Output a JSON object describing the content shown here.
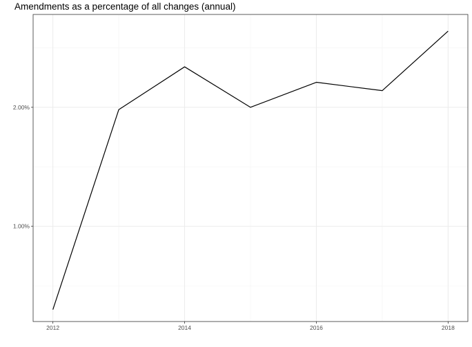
{
  "chart_data": {
    "type": "line",
    "title": "Amendments as a percentage of all changes (annual)",
    "xlabel": "",
    "ylabel": "",
    "x": [
      2012,
      2013,
      2014,
      2015,
      2016,
      2017,
      2018
    ],
    "series": [
      {
        "values": [
          0.003,
          0.0198,
          0.0234,
          0.02,
          0.0221,
          0.0214,
          0.0264
        ]
      }
    ],
    "xlim": [
      2011.7,
      2018.3
    ],
    "ylim": [
      0.002,
      0.0278
    ],
    "x_ticks": [
      2012,
      2014,
      2016,
      2018
    ],
    "x_tick_labels": [
      "2012",
      "2014",
      "2016",
      "2018"
    ],
    "x_minor_ticks": [
      2013,
      2015,
      2017
    ],
    "y_ticks": [
      0.01,
      0.02
    ],
    "y_tick_labels": [
      "1.00%",
      "2.00%"
    ],
    "y_minor_ticks": [
      0.005,
      0.015,
      0.025
    ],
    "grid": true,
    "legend": "none",
    "colors": {
      "line": "#000000",
      "grid": "#ebebeb",
      "panel_border": "#333333",
      "background": "#ffffff"
    }
  }
}
